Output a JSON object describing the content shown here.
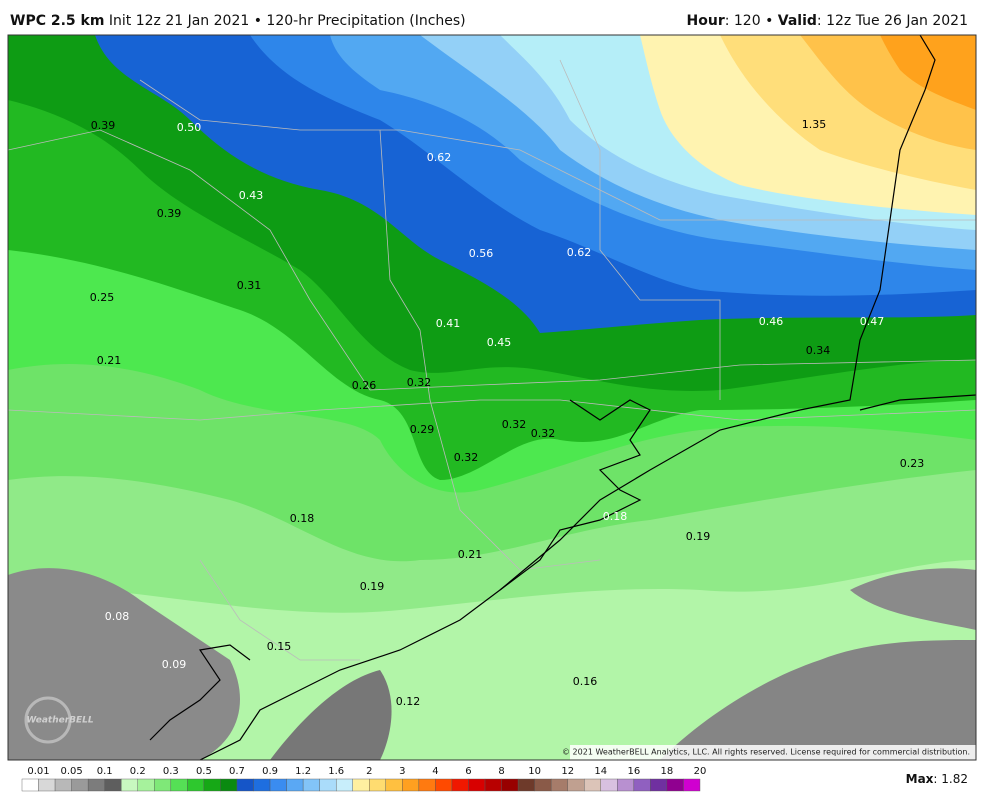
{
  "header": {
    "model": "WPC 2.5 km",
    "description": "Init 12z 21 Jan 2021 • 120-hr Precipitation (Inches)",
    "hour_key": "Hour",
    "hour_value": ": 120 • ",
    "valid_key": "Valid",
    "valid_value": ": 12z Tue 26 Jan 2021"
  },
  "map_labels": [
    {
      "text": "0.39",
      "color": "#000"
    },
    {
      "text": "0.50",
      "color": "#fff"
    },
    {
      "text": "0.62",
      "color": "#fff"
    },
    {
      "text": "1.35",
      "color": "#000"
    },
    {
      "text": "0.43",
      "color": "#fff"
    },
    {
      "text": "0.39",
      "color": "#000"
    },
    {
      "text": "0.56",
      "color": "#fff"
    },
    {
      "text": "0.62",
      "color": "#fff"
    },
    {
      "text": "0.25",
      "color": "#000"
    },
    {
      "text": "0.31",
      "color": "#000"
    },
    {
      "text": "0.41",
      "color": "#fff"
    },
    {
      "text": "0.46",
      "color": "#fff"
    },
    {
      "text": "0.47",
      "color": "#fff"
    },
    {
      "text": "0.45",
      "color": "#fff"
    },
    {
      "text": "0.34",
      "color": "#000"
    },
    {
      "text": "0.21",
      "color": "#000"
    },
    {
      "text": "0.26",
      "color": "#000"
    },
    {
      "text": "0.32",
      "color": "#000"
    },
    {
      "text": "0.29",
      "color": "#000"
    },
    {
      "text": "0.32",
      "color": "#000"
    },
    {
      "text": "0.32",
      "color": "#000"
    },
    {
      "text": "0.32",
      "color": "#000"
    },
    {
      "text": "0.23",
      "color": "#000"
    },
    {
      "text": "0.18",
      "color": "#000"
    },
    {
      "text": "0.18",
      "color": "#fff"
    },
    {
      "text": "0.19",
      "color": "#000"
    },
    {
      "text": "0.21",
      "color": "#000"
    },
    {
      "text": "0.19",
      "color": "#000"
    },
    {
      "text": "0.08",
      "color": "#fff"
    },
    {
      "text": "0.15",
      "color": "#000"
    },
    {
      "text": "0.09",
      "color": "#fff"
    },
    {
      "text": "0.16",
      "color": "#000"
    },
    {
      "text": "0.12",
      "color": "#000"
    }
  ],
  "colorbar": {
    "labels": [
      "0.01",
      "0.05",
      "0.1",
      "0.2",
      "0.3",
      "0.5",
      "0.7",
      "0.9",
      "1.2",
      "1.6",
      "2",
      "3",
      "4",
      "6",
      "8",
      "10",
      "12",
      "14",
      "16",
      "18",
      "20"
    ],
    "colors": [
      "#ffffff",
      "#d8d8d8",
      "#b8b8b8",
      "#9a9a9a",
      "#7c7c7c",
      "#5e5e5e",
      "#c8f8c0",
      "#a6f29c",
      "#7fe878",
      "#55e055",
      "#2ec82e",
      "#16a816",
      "#0a8a10",
      "#1555c8",
      "#1e6ee0",
      "#3a8cf0",
      "#5aa8f4",
      "#82c4f8",
      "#aadcfa",
      "#c8eefb",
      "#fff0a0",
      "#ffdc70",
      "#ffc040",
      "#ffa020",
      "#ff7a10",
      "#ff4a00",
      "#f01800",
      "#d80000",
      "#b80000",
      "#980000",
      "#6e3a2a",
      "#8a5a48",
      "#a67c6a",
      "#c0a090",
      "#dcc4b8",
      "#d8c0e0",
      "#b890d0",
      "#9060c0",
      "#7030a0",
      "#900090",
      "#d000d0"
    ]
  },
  "footer": {
    "max_key": "Max",
    "max_value": ": 1.82"
  },
  "copyright": "© 2021 WeatherBELL Analytics, LLC. All rights reserved. License required for commercial distribution.",
  "logo": "WeatherBELL"
}
